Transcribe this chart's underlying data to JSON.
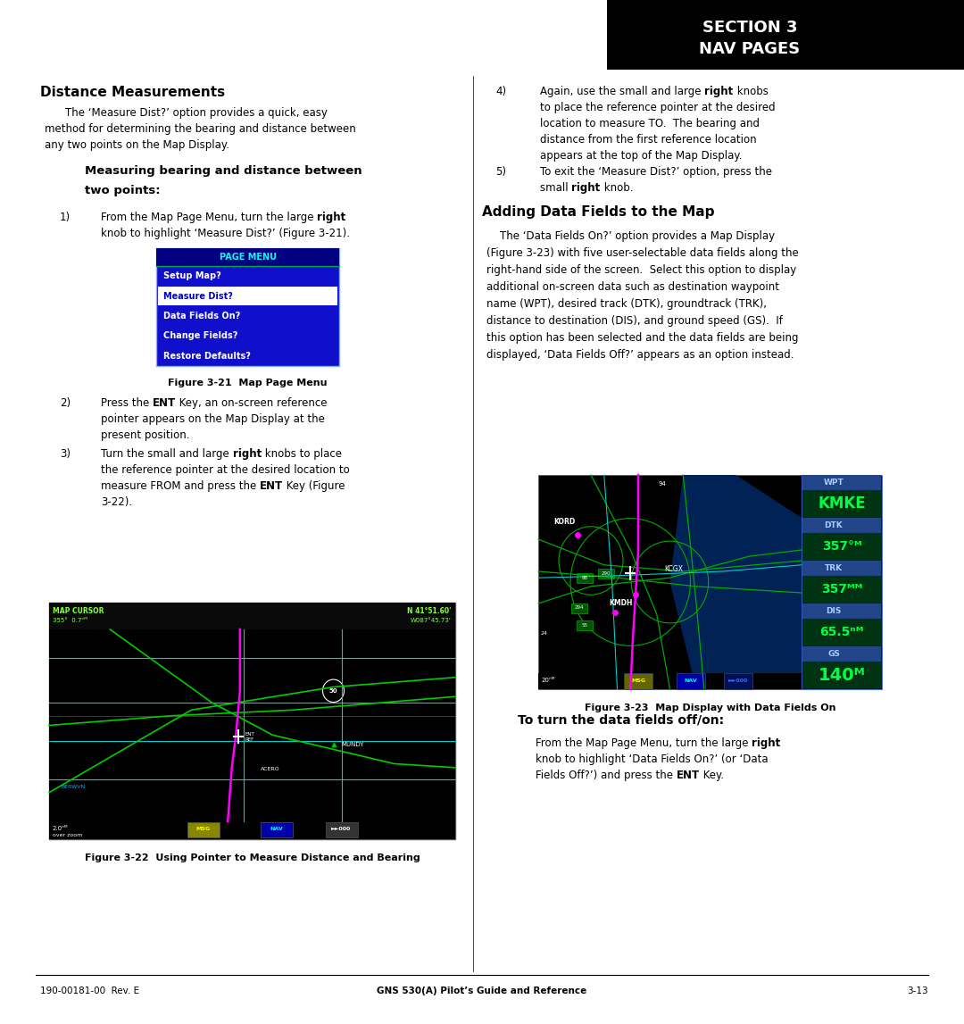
{
  "page_width": 10.8,
  "page_height": 11.47,
  "bg_color": "#ffffff",
  "header_bg": "#000000",
  "header_text_color": "#ffffff",
  "header_line1": "SECTION 3",
  "header_line2": "NAV PAGES",
  "footer_left": "190-00181-00  Rev. E",
  "footer_center": "GNS 530(A) Pilot’s Guide and Reference",
  "footer_right": "3-13",
  "section1_title": "Distance Measurements",
  "fig21_caption": "Figure 3-21  Map Page Menu",
  "fig22_caption": "Figure 3-22  Using Pointer to Measure Distance and Bearing",
  "fig23_caption": "Figure 3-23  Map Display with Data Fields On",
  "section2_title": "Adding Data Fields to the Map",
  "section3_title": "To turn the data fields off/on:",
  "menu_items": [
    "Setup Map?",
    "Measure Dist?",
    "Data Fields On?",
    "Change Fields?",
    "Restore Defaults?"
  ],
  "menu_selected_idx": 1
}
